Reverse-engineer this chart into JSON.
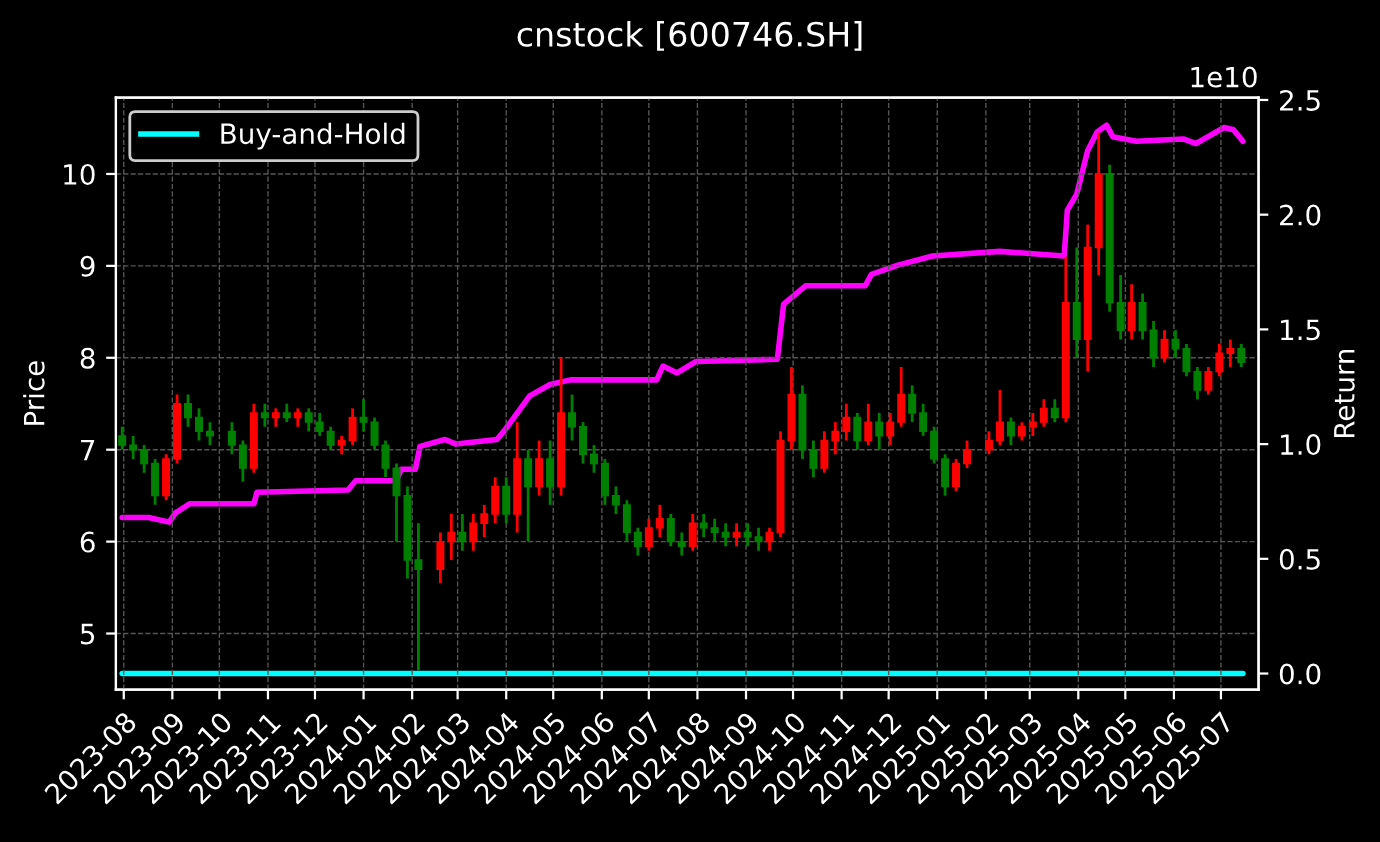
{
  "chart_data": {
    "type": "candlestick",
    "title": "cnstock [600746.SH]",
    "ylabel": "Price",
    "y2label": "Return",
    "annotations": [
      "1e10"
    ],
    "x": [
      "2023-07-31",
      "2023-08-07",
      "2023-08-14",
      "2023-08-21",
      "2023-08-28",
      "2023-09-04",
      "2023-09-11",
      "2023-09-18",
      "2023-09-25",
      "2023-10-09",
      "2023-10-16",
      "2023-10-23",
      "2023-10-30",
      "2023-11-06",
      "2023-11-13",
      "2023-11-20",
      "2023-11-27",
      "2023-12-04",
      "2023-12-11",
      "2023-12-18",
      "2023-12-25",
      "2024-01-01",
      "2024-01-08",
      "2024-01-15",
      "2024-01-22",
      "2024-01-29",
      "2024-02-05",
      "2024-02-19",
      "2024-02-26",
      "2024-03-04",
      "2024-03-11",
      "2024-03-18",
      "2024-03-25",
      "2024-04-01",
      "2024-04-08",
      "2024-04-15",
      "2024-04-22",
      "2024-04-29",
      "2024-05-06",
      "2024-05-13",
      "2024-05-20",
      "2024-05-27",
      "2024-06-03",
      "2024-06-10",
      "2024-06-17",
      "2024-06-24",
      "2024-07-01",
      "2024-07-08",
      "2024-07-15",
      "2024-07-22",
      "2024-07-29",
      "2024-08-05",
      "2024-08-12",
      "2024-08-19",
      "2024-08-26",
      "2024-09-02",
      "2024-09-09",
      "2024-09-16",
      "2024-09-23",
      "2024-09-30",
      "2024-10-07",
      "2024-10-14",
      "2024-10-21",
      "2024-10-28",
      "2024-11-04",
      "2024-11-11",
      "2024-11-18",
      "2024-11-25",
      "2024-12-02",
      "2024-12-09",
      "2024-12-16",
      "2024-12-23",
      "2024-12-30",
      "2025-01-06",
      "2025-01-13",
      "2025-01-20",
      "2025-02-03",
      "2025-02-10",
      "2025-02-17",
      "2025-02-24",
      "2025-03-03",
      "2025-03-10",
      "2025-03-17",
      "2025-03-24",
      "2025-03-31",
      "2025-04-07",
      "2025-04-14",
      "2025-04-21",
      "2025-04-28",
      "2025-05-05",
      "2025-05-12",
      "2025-05-19",
      "2025-05-26",
      "2025-06-02",
      "2025-06-09",
      "2025-06-16",
      "2025-06-23",
      "2025-06-30",
      "2025-07-07",
      "2025-07-14"
    ],
    "ohlc": [
      [
        7.15,
        7.25,
        7.0,
        7.05
      ],
      [
        7.05,
        7.15,
        6.9,
        7.0
      ],
      [
        7.0,
        7.05,
        6.75,
        6.85
      ],
      [
        6.85,
        6.9,
        6.4,
        6.5
      ],
      [
        6.5,
        6.95,
        6.45,
        6.9
      ],
      [
        6.9,
        7.6,
        6.85,
        7.5
      ],
      [
        7.5,
        7.6,
        7.25,
        7.35
      ],
      [
        7.35,
        7.45,
        7.1,
        7.2
      ],
      [
        7.2,
        7.3,
        7.05,
        7.15
      ],
      [
        7.2,
        7.3,
        6.95,
        7.05
      ],
      [
        7.05,
        7.1,
        6.65,
        6.8
      ],
      [
        6.8,
        7.5,
        6.75,
        7.4
      ],
      [
        7.4,
        7.5,
        7.25,
        7.35
      ],
      [
        7.35,
        7.45,
        7.25,
        7.4
      ],
      [
        7.4,
        7.5,
        7.3,
        7.35
      ],
      [
        7.35,
        7.45,
        7.25,
        7.4
      ],
      [
        7.4,
        7.45,
        7.2,
        7.3
      ],
      [
        7.3,
        7.4,
        7.15,
        7.2
      ],
      [
        7.2,
        7.25,
        7.0,
        7.05
      ],
      [
        7.05,
        7.15,
        6.95,
        7.1
      ],
      [
        7.1,
        7.45,
        7.05,
        7.35
      ],
      [
        7.35,
        7.55,
        7.2,
        7.3
      ],
      [
        7.3,
        7.35,
        7.0,
        7.05
      ],
      [
        7.05,
        7.1,
        6.7,
        6.8
      ],
      [
        6.8,
        6.85,
        6.0,
        6.5
      ],
      [
        6.5,
        6.6,
        5.6,
        5.8
      ],
      [
        5.8,
        6.2,
        4.6,
        5.7
      ],
      [
        5.7,
        6.1,
        5.55,
        6.0
      ],
      [
        6.0,
        6.3,
        5.8,
        6.1
      ],
      [
        6.1,
        6.3,
        5.9,
        6.0
      ],
      [
        6.0,
        6.3,
        5.9,
        6.2
      ],
      [
        6.2,
        6.4,
        6.05,
        6.3
      ],
      [
        6.3,
        6.7,
        6.2,
        6.6
      ],
      [
        6.6,
        6.7,
        6.2,
        6.3
      ],
      [
        6.3,
        7.3,
        6.1,
        6.9
      ],
      [
        6.9,
        7.0,
        6.0,
        6.6
      ],
      [
        6.6,
        7.1,
        6.5,
        6.9
      ],
      [
        6.9,
        7.1,
        6.4,
        6.6
      ],
      [
        6.6,
        8.0,
        6.5,
        7.4
      ],
      [
        7.4,
        7.6,
        7.1,
        7.25
      ],
      [
        7.25,
        7.3,
        6.85,
        6.95
      ],
      [
        6.95,
        7.05,
        6.75,
        6.85
      ],
      [
        6.85,
        6.9,
        6.4,
        6.5
      ],
      [
        6.5,
        6.6,
        6.3,
        6.4
      ],
      [
        6.4,
        6.45,
        6.0,
        6.1
      ],
      [
        6.1,
        6.15,
        5.85,
        5.95
      ],
      [
        5.95,
        6.25,
        5.9,
        6.15
      ],
      [
        6.15,
        6.4,
        6.05,
        6.25
      ],
      [
        6.25,
        6.3,
        5.95,
        6.0
      ],
      [
        6.0,
        6.1,
        5.85,
        5.95
      ],
      [
        5.95,
        6.3,
        5.9,
        6.2
      ],
      [
        6.2,
        6.3,
        6.05,
        6.15
      ],
      [
        6.15,
        6.25,
        6.0,
        6.1
      ],
      [
        6.1,
        6.2,
        5.95,
        6.05
      ],
      [
        6.05,
        6.2,
        5.95,
        6.1
      ],
      [
        6.1,
        6.2,
        5.95,
        6.05
      ],
      [
        6.05,
        6.15,
        5.9,
        6.0
      ],
      [
        6.0,
        6.15,
        5.9,
        6.1
      ],
      [
        6.1,
        7.2,
        6.05,
        7.1
      ],
      [
        7.1,
        7.9,
        7.0,
        7.6
      ],
      [
        7.6,
        7.7,
        6.9,
        7.0
      ],
      [
        7.0,
        7.1,
        6.7,
        6.8
      ],
      [
        6.8,
        7.2,
        6.75,
        7.1
      ],
      [
        7.1,
        7.3,
        6.95,
        7.2
      ],
      [
        7.2,
        7.5,
        7.1,
        7.35
      ],
      [
        7.35,
        7.4,
        7.0,
        7.1
      ],
      [
        7.1,
        7.5,
        7.05,
        7.3
      ],
      [
        7.3,
        7.4,
        7.0,
        7.15
      ],
      [
        7.15,
        7.4,
        7.05,
        7.3
      ],
      [
        7.3,
        7.9,
        7.25,
        7.6
      ],
      [
        7.6,
        7.7,
        7.3,
        7.4
      ],
      [
        7.4,
        7.5,
        7.15,
        7.2
      ],
      [
        7.2,
        7.25,
        6.85,
        6.9
      ],
      [
        6.9,
        6.95,
        6.5,
        6.6
      ],
      [
        6.6,
        6.9,
        6.55,
        6.85
      ],
      [
        6.85,
        7.1,
        6.8,
        7.0
      ],
      [
        7.0,
        7.2,
        6.95,
        7.1
      ],
      [
        7.1,
        7.65,
        7.05,
        7.3
      ],
      [
        7.3,
        7.35,
        7.05,
        7.15
      ],
      [
        7.15,
        7.3,
        7.1,
        7.25
      ],
      [
        7.25,
        7.4,
        7.15,
        7.3
      ],
      [
        7.3,
        7.55,
        7.25,
        7.45
      ],
      [
        7.45,
        7.55,
        7.3,
        7.35
      ],
      [
        7.35,
        9.1,
        7.3,
        8.6
      ],
      [
        8.6,
        9.2,
        8.0,
        8.2
      ],
      [
        8.2,
        9.45,
        7.85,
        9.2
      ],
      [
        9.2,
        10.45,
        8.9,
        10.0
      ],
      [
        10.0,
        10.1,
        8.5,
        8.6
      ],
      [
        8.6,
        8.9,
        8.2,
        8.3
      ],
      [
        8.3,
        8.8,
        8.2,
        8.6
      ],
      [
        8.6,
        8.7,
        8.2,
        8.3
      ],
      [
        8.3,
        8.4,
        7.9,
        8.0
      ],
      [
        8.0,
        8.3,
        7.95,
        8.2
      ],
      [
        8.2,
        8.3,
        8.0,
        8.1
      ],
      [
        8.1,
        8.15,
        7.8,
        7.85
      ],
      [
        7.85,
        7.9,
        7.55,
        7.65
      ],
      [
        7.65,
        7.9,
        7.6,
        7.85
      ],
      [
        7.85,
        8.15,
        7.8,
        8.05
      ],
      [
        8.05,
        8.2,
        7.9,
        8.1
      ],
      [
        8.1,
        8.15,
        7.9,
        7.95
      ]
    ],
    "colors": [
      "#008000",
      "#008000",
      "#008000",
      "#008000",
      "#ff0000",
      "#ff0000",
      "#008000",
      "#008000",
      "#008000",
      "#008000",
      "#008000",
      "#ff0000",
      "#008000",
      "#ff0000",
      "#008000",
      "#ff0000",
      "#008000",
      "#008000",
      "#008000",
      "#ff0000",
      "#ff0000",
      "#008000",
      "#008000",
      "#008000",
      "#008000",
      "#008000",
      "#008000",
      "#ff0000",
      "#ff0000",
      "#008000",
      "#ff0000",
      "#ff0000",
      "#ff0000",
      "#008000",
      "#ff0000",
      "#008000",
      "#ff0000",
      "#008000",
      "#ff0000",
      "#008000",
      "#008000",
      "#008000",
      "#008000",
      "#008000",
      "#008000",
      "#008000",
      "#ff0000",
      "#ff0000",
      "#008000",
      "#008000",
      "#ff0000",
      "#008000",
      "#008000",
      "#008000",
      "#ff0000",
      "#008000",
      "#008000",
      "#ff0000",
      "#ff0000",
      "#ff0000",
      "#008000",
      "#008000",
      "#ff0000",
      "#ff0000",
      "#ff0000",
      "#008000",
      "#ff0000",
      "#008000",
      "#ff0000",
      "#ff0000",
      "#008000",
      "#008000",
      "#008000",
      "#008000",
      "#ff0000",
      "#ff0000",
      "#ff0000",
      "#ff0000",
      "#008000",
      "#ff0000",
      "#ff0000",
      "#ff0000",
      "#008000",
      "#ff0000",
      "#008000",
      "#ff0000",
      "#ff0000",
      "#008000",
      "#008000",
      "#ff0000",
      "#008000",
      "#008000",
      "#ff0000",
      "#008000",
      "#008000",
      "#008000",
      "#ff0000",
      "#ff0000",
      "#ff0000",
      "#008000"
    ],
    "series": [
      {
        "type": "line",
        "axis": "y2",
        "color": "#ff00ff",
        "x": [
          "2023-07-31",
          "2023-08-17",
          "2023-08-30",
          "2023-09-03",
          "2023-09-12",
          "2023-10-23",
          "2023-10-25",
          "2023-12-22",
          "2023-12-27",
          "2024-01-22",
          "2024-01-25",
          "2024-02-03",
          "2024-02-06",
          "2024-02-22",
          "2024-02-29",
          "2024-03-26",
          "2024-03-31",
          "2024-04-16",
          "2024-04-29",
          "2024-05-12",
          "2024-07-06",
          "2024-07-10",
          "2024-07-19",
          "2024-07-31",
          "2024-09-21",
          "2024-09-25",
          "2024-10-09",
          "2024-11-16",
          "2024-11-20",
          "2024-12-07",
          "2024-12-29",
          "2025-02-10",
          "2025-03-23",
          "2025-03-25",
          "2025-03-31",
          "2025-04-07",
          "2025-04-13",
          "2025-04-19",
          "2025-04-23",
          "2025-05-08",
          "2025-06-07",
          "2025-06-15",
          "2025-07-03",
          "2025-07-09",
          "2025-07-15"
        ],
        "values": [
          0.68,
          0.68,
          0.66,
          0.7,
          0.74,
          0.74,
          0.79,
          0.8,
          0.84,
          0.84,
          0.89,
          0.89,
          0.99,
          1.02,
          1.0,
          1.02,
          1.06,
          1.21,
          1.26,
          1.28,
          1.28,
          1.34,
          1.31,
          1.36,
          1.37,
          1.61,
          1.69,
          1.69,
          1.74,
          1.78,
          1.82,
          1.84,
          1.82,
          2.02,
          2.09,
          2.28,
          2.36,
          2.39,
          2.34,
          2.32,
          2.33,
          2.31,
          2.38,
          2.37,
          2.32
        ]
      },
      {
        "type": "line",
        "axis": "y2",
        "name": "Buy-and-Hold",
        "color": "#00ffff",
        "x": [
          "2023-07-31",
          "2025-07-15"
        ],
        "values": [
          0,
          0
        ]
      }
    ],
    "xlim": [
      "2023-07-27",
      "2025-07-25"
    ],
    "xticks": [
      "2023-08",
      "2023-09",
      "2023-10",
      "2023-11",
      "2023-12",
      "2024-01",
      "2024-02",
      "2024-03",
      "2024-04",
      "2024-05",
      "2024-06",
      "2024-07",
      "2024-08",
      "2024-09",
      "2024-10",
      "2024-11",
      "2024-12",
      "2025-01",
      "2025-02",
      "2025-03",
      "2025-04",
      "2025-05",
      "2025-06",
      "2025-07"
    ],
    "ylim": [
      4.39,
      10.83
    ],
    "yticks": [
      5,
      6,
      7,
      8,
      9,
      10
    ],
    "y2lim": [
      -0.07,
      2.51
    ],
    "y2ticks": [
      {
        "value": 0,
        "label": "0.0"
      },
      0.5,
      {
        "value": 1,
        "label": "1.0"
      },
      1.5,
      {
        "value": 2,
        "label": "2.0"
      },
      2.5
    ],
    "grid": true,
    "legend": "top left"
  }
}
